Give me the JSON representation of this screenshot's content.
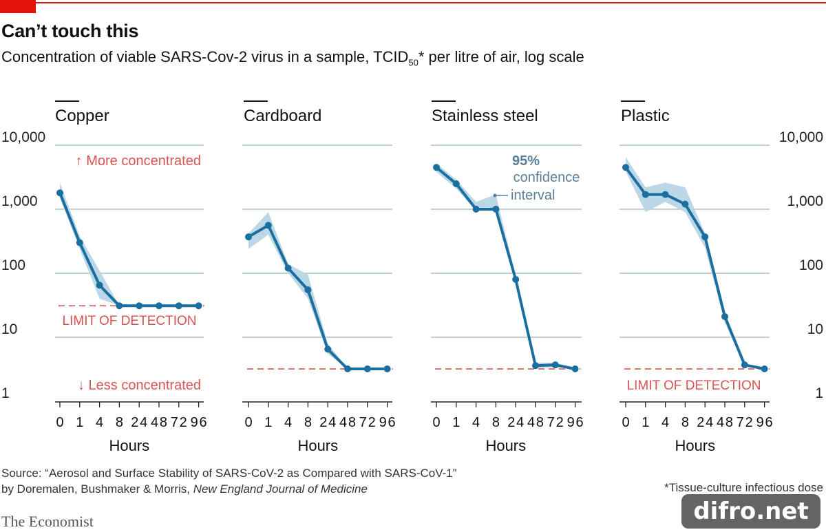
{
  "header": {
    "title": "Can’t touch this",
    "subtitle_main": "Concentration of viable SARS-Cov-2 virus in a sample, TCID",
    "subtitle_sub": "50",
    "subtitle_rest": "* per litre of air, log scale"
  },
  "chart_data": {
    "type": "line",
    "scale": "log",
    "ylim": [
      1,
      10000
    ],
    "y_ticks": [
      "1",
      "10",
      "100",
      "1,000",
      "10,000"
    ],
    "x_categories": [
      "0",
      "1",
      "4",
      "8",
      "24",
      "48",
      "72",
      "96"
    ],
    "xlabel": "Hours",
    "colors": {
      "line": "#1a6fa0",
      "band": "#bcd7e6",
      "grid": "#9fb3c0",
      "limit": "#d9534f",
      "annotation": "#5a7e96"
    },
    "panels": [
      {
        "name": "Copper",
        "values": [
          1800,
          300,
          65,
          31,
          31,
          31,
          31,
          31
        ],
        "ci_low": [
          1500,
          240,
          40,
          31,
          31,
          31,
          31,
          31
        ],
        "ci_high": [
          2600,
          380,
          110,
          31,
          31,
          31,
          31,
          31
        ],
        "limit": 31,
        "annotations": {
          "up": "↑ More concentrated",
          "limit": "LIMIT OF DETECTION",
          "down": "↓ Less concentrated"
        }
      },
      {
        "name": "Cardboard",
        "values": [
          370,
          560,
          120,
          55,
          6.5,
          3.2,
          3.2,
          3.2
        ],
        "ci_low": [
          240,
          400,
          100,
          40,
          5.5,
          3.2,
          3.2,
          3.2
        ],
        "ci_high": [
          420,
          900,
          140,
          95,
          8,
          3.2,
          3.2,
          3.2
        ],
        "limit": 3.2
      },
      {
        "name": "Stainless steel",
        "values": [
          4500,
          2500,
          1000,
          1000,
          80,
          3.6,
          3.7,
          3.2
        ],
        "ci_low": [
          3800,
          2100,
          950,
          950,
          70,
          3.3,
          3.4,
          3.2
        ],
        "ci_high": [
          5200,
          2900,
          1300,
          1700,
          90,
          4.0,
          4.0,
          3.2
        ],
        "limit": 3.2,
        "annotations": {
          "ci": [
            "95%",
            "confidence",
            "interval"
          ]
        }
      },
      {
        "name": "Plastic",
        "values": [
          4500,
          1700,
          1700,
          1200,
          370,
          21,
          3.7,
          3.2
        ],
        "ci_low": [
          3900,
          900,
          1300,
          900,
          250,
          17,
          3.5,
          3.2
        ],
        "ci_high": [
          6500,
          2200,
          2600,
          2200,
          420,
          25,
          3.9,
          3.2
        ],
        "limit": 3.2,
        "annotations": {
          "limit": "LIMIT OF DETECTION"
        }
      }
    ]
  },
  "footer": {
    "source_line1": "Source: “Aerosol and Surface Stability of SARS-CoV-2 as Compared with SARS-CoV-1”",
    "source_line2": "by Doremalen, Bushmaker & Morris, ",
    "source_journal": "New England Journal of Medicine",
    "footnote": "*Tissue-culture infectious dose",
    "brand": "The Economist",
    "watermark": "difro.net"
  }
}
